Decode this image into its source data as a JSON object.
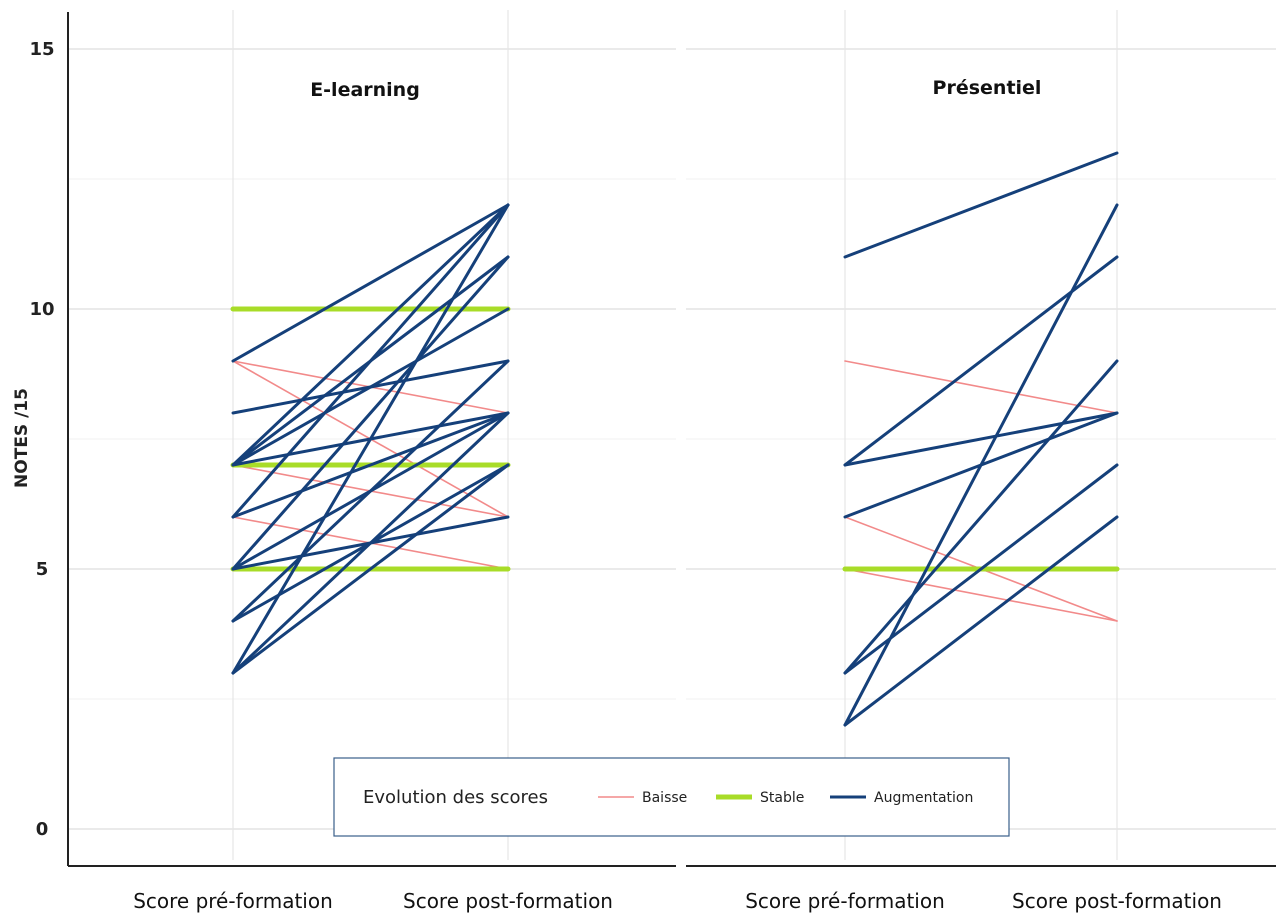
{
  "chart_data": {
    "type": "line",
    "ylabel": "NOTES /15",
    "ylim": [
      0,
      15
    ],
    "yticks": [
      "0",
      "5",
      "10",
      "15"
    ],
    "grid": true,
    "colors": {
      "Baisse": "#f28a8a",
      "Stable": "#a8dc28",
      "Augmentation": "#15407a"
    },
    "legend": {
      "placement": "bottom-center",
      "title": "Evolution des scores",
      "items": [
        "Baisse",
        "Stable",
        "Augmentation"
      ]
    },
    "panels": [
      {
        "title": "E-learning",
        "categories": [
          "Score pré-formation",
          "Score post-formation"
        ],
        "series": [
          {
            "group": "Baisse",
            "values": [
              9,
              8
            ]
          },
          {
            "group": "Baisse",
            "values": [
              9,
              6
            ]
          },
          {
            "group": "Baisse",
            "values": [
              7,
              6
            ]
          },
          {
            "group": "Baisse",
            "values": [
              6,
              5
            ]
          },
          {
            "group": "Stable",
            "values": [
              10,
              10
            ]
          },
          {
            "group": "Stable",
            "values": [
              7,
              7
            ]
          },
          {
            "group": "Stable",
            "values": [
              5,
              5
            ]
          },
          {
            "group": "Augmentation",
            "values": [
              9,
              12
            ]
          },
          {
            "group": "Augmentation",
            "values": [
              8,
              9
            ]
          },
          {
            "group": "Augmentation",
            "values": [
              7,
              12
            ]
          },
          {
            "group": "Augmentation",
            "values": [
              7,
              11
            ]
          },
          {
            "group": "Augmentation",
            "values": [
              7,
              10
            ]
          },
          {
            "group": "Augmentation",
            "values": [
              7,
              8
            ]
          },
          {
            "group": "Augmentation",
            "values": [
              6,
              12
            ]
          },
          {
            "group": "Augmentation",
            "values": [
              6,
              8
            ]
          },
          {
            "group": "Augmentation",
            "values": [
              5,
              11
            ]
          },
          {
            "group": "Augmentation",
            "values": [
              5,
              8
            ]
          },
          {
            "group": "Augmentation",
            "values": [
              5,
              6
            ]
          },
          {
            "group": "Augmentation",
            "values": [
              4,
              9
            ]
          },
          {
            "group": "Augmentation",
            "values": [
              4,
              7
            ]
          },
          {
            "group": "Augmentation",
            "values": [
              3,
              12
            ]
          },
          {
            "group": "Augmentation",
            "values": [
              3,
              8
            ]
          },
          {
            "group": "Augmentation",
            "values": [
              3,
              7
            ]
          }
        ]
      },
      {
        "title": "Présentiel",
        "categories": [
          "Score pré-formation",
          "Score post-formation"
        ],
        "series": [
          {
            "group": "Baisse",
            "values": [
              9,
              8
            ]
          },
          {
            "group": "Baisse",
            "values": [
              6,
              4
            ]
          },
          {
            "group": "Baisse",
            "values": [
              5,
              4
            ]
          },
          {
            "group": "Stable",
            "values": [
              5,
              5
            ]
          },
          {
            "group": "Augmentation",
            "values": [
              11,
              13
            ]
          },
          {
            "group": "Augmentation",
            "values": [
              7,
              11
            ]
          },
          {
            "group": "Augmentation",
            "values": [
              7,
              8
            ]
          },
          {
            "group": "Augmentation",
            "values": [
              6,
              8
            ]
          },
          {
            "group": "Augmentation",
            "values": [
              3,
              9
            ]
          },
          {
            "group": "Augmentation",
            "values": [
              3,
              7
            ]
          },
          {
            "group": "Augmentation",
            "values": [
              2,
              12
            ]
          },
          {
            "group": "Augmentation",
            "values": [
              2,
              6
            ]
          }
        ]
      }
    ]
  }
}
